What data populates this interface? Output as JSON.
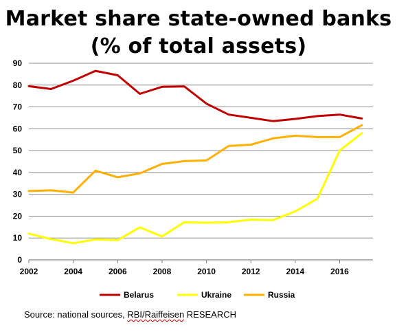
{
  "chart_data": {
    "type": "line",
    "title_line1": "Market share state-owned banks",
    "title_line2": "(% of total assets)",
    "x": [
      2002,
      2003,
      2004,
      2005,
      2006,
      2007,
      2008,
      2009,
      2010,
      2011,
      2012,
      2013,
      2014,
      2015,
      2016,
      2017
    ],
    "x_ticks": [
      "2002",
      "2004",
      "2006",
      "2008",
      "2010",
      "2012",
      "2014",
      "2016"
    ],
    "y_ticks": [
      "0",
      "10",
      "20",
      "30",
      "40",
      "50",
      "60",
      "70",
      "80",
      "90"
    ],
    "ylim": [
      0,
      90
    ],
    "xlim": [
      2002,
      2017.5
    ],
    "grid": true,
    "legend_position": "bottom",
    "series": [
      {
        "name": "Belarus",
        "color": "#c00000",
        "values": [
          79.5,
          78.2,
          82.0,
          86.5,
          84.5,
          76.0,
          79.2,
          79.4,
          71.5,
          66.5,
          65.0,
          63.5,
          64.5,
          65.8,
          66.5,
          64.7
        ]
      },
      {
        "name": "Ukraine",
        "color": "#ffff00",
        "values": [
          12.0,
          9.5,
          7.6,
          9.3,
          9.0,
          14.9,
          10.7,
          17.2,
          17.0,
          17.2,
          18.4,
          18.2,
          22.2,
          28.0,
          50.0,
          58.0
        ]
      },
      {
        "name": "Russia",
        "color": "#ffb000",
        "values": [
          31.5,
          31.8,
          30.8,
          40.8,
          37.8,
          39.6,
          43.9,
          45.2,
          45.5,
          52.1,
          52.7,
          55.6,
          56.8,
          56.2,
          56.2,
          61.6
        ]
      }
    ]
  },
  "source": {
    "prefix": "Source: national sources, ",
    "squiggle": "RBI/Raiffeisen",
    "suffix": " RESEARCH"
  }
}
